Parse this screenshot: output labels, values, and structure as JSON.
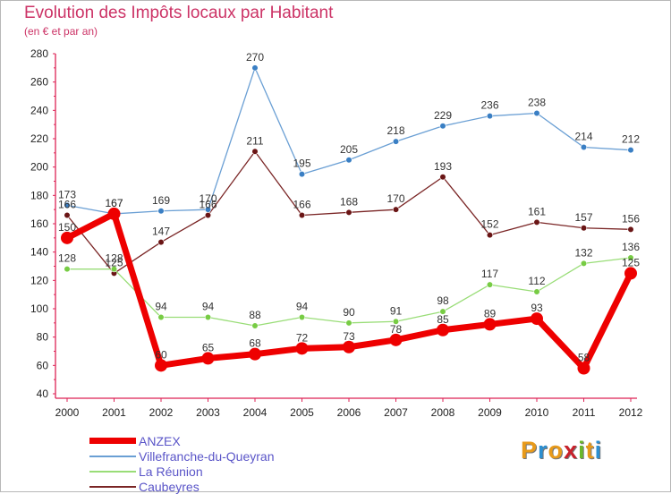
{
  "header": {
    "title": "Evolution des Impôts locaux par Habitant",
    "subtitle": "(en € et par an)"
  },
  "logo": {
    "letters": [
      "P",
      "r",
      "o",
      "x",
      "i",
      "t",
      "i"
    ],
    "colors": [
      "#e89a1a",
      "#2c8fd0",
      "#e89a1a",
      "#c8202a",
      "#6ab82a",
      "#e89a1a",
      "#2c8fd0"
    ]
  },
  "chart_data": {
    "type": "line",
    "title": "Evolution des Impôts locaux par Habitant",
    "subtitle": "(en € et par an)",
    "xlabel": "",
    "ylabel": "",
    "x": [
      "2000",
      "2001",
      "2002",
      "2003",
      "2004",
      "2005",
      "2006",
      "2007",
      "2008",
      "2009",
      "2010",
      "2011",
      "2012"
    ],
    "ylim": [
      40,
      280
    ],
    "yticks": [
      40,
      60,
      80,
      100,
      120,
      140,
      160,
      180,
      200,
      220,
      240,
      260,
      280
    ],
    "grid": false,
    "legend_position": "bottom-left",
    "series": [
      {
        "name": "ANZEX",
        "color": "#ee0000",
        "values": [
          150,
          167,
          60,
          65,
          68,
          72,
          73,
          78,
          85,
          89,
          93,
          58,
          125
        ]
      },
      {
        "name": "Villefranche-du-Queyran",
        "color": "#6a9fd4",
        "values": [
          173,
          167,
          169,
          170,
          270,
          195,
          205,
          218,
          229,
          236,
          238,
          214,
          212
        ]
      },
      {
        "name": "La Réunion",
        "color": "#99dd77",
        "values": [
          128,
          128,
          94,
          94,
          88,
          94,
          90,
          91,
          98,
          117,
          112,
          132,
          136
        ]
      },
      {
        "name": "Caubeyres",
        "color": "#7a2525",
        "values": [
          166,
          125,
          147,
          166,
          211,
          166,
          168,
          170,
          193,
          152,
          161,
          157,
          156
        ]
      }
    ]
  }
}
